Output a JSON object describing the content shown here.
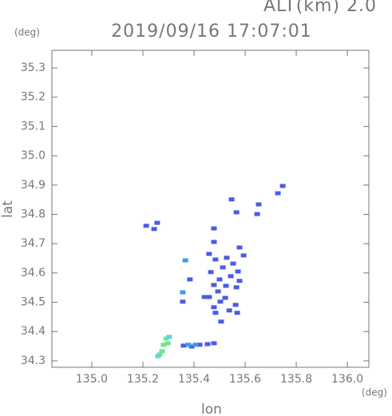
{
  "chart_data": {
    "type": "scatter",
    "title": "2019/09/16 17:07:01",
    "subtitle": "ALT(km) 2.0",
    "xlabel": "lon",
    "ylabel": "lat",
    "xunit": "(deg)",
    "yunit": "(deg)",
    "xlim": [
      134.844,
      136.084
    ],
    "ylim": [
      34.278,
      35.36
    ],
    "xticks": [
      {
        "value": 135.0,
        "label": "135.0"
      },
      135.2,
      135.4,
      135.6,
      135.8,
      {
        "value": 136.0,
        "label": "136.0"
      }
    ],
    "yticks": [
      34.3,
      34.4,
      34.5,
      34.6,
      34.7,
      34.8,
      34.9,
      {
        "value": 35.0,
        "label": "35.0"
      },
      35.1,
      35.2,
      35.3
    ],
    "series": [
      {
        "color": "#4a5ce6",
        "x": [
          135.213,
          135.256,
          135.244,
          135.547,
          135.566,
          135.653,
          135.647,
          135.728,
          135.747,
          135.478,
          135.478,
          135.578,
          135.594,
          135.459,
          135.484,
          135.528,
          135.553,
          135.513,
          135.572,
          135.466,
          135.544,
          135.5,
          135.578,
          135.384,
          135.478,
          135.525,
          135.566,
          135.494,
          135.459,
          135.503,
          135.478,
          135.522,
          135.563,
          135.538,
          135.569,
          135.484,
          135.506,
          135.356,
          135.441,
          135.359,
          135.391,
          135.422,
          135.453,
          135.478
        ],
        "values": [
          34.761,
          34.771,
          34.75,
          34.851,
          34.807,
          34.834,
          34.801,
          34.872,
          34.897,
          34.752,
          34.706,
          34.687,
          34.66,
          34.665,
          34.646,
          34.652,
          34.632,
          34.619,
          34.605,
          34.603,
          34.589,
          34.578,
          34.573,
          34.578,
          34.559,
          34.556,
          34.551,
          34.537,
          34.518,
          34.502,
          34.483,
          34.515,
          34.491,
          34.472,
          34.464,
          34.464,
          34.434,
          34.502,
          34.518,
          34.352,
          34.349,
          34.355,
          34.357,
          34.36
        ]
      },
      {
        "color": "#3d9be9",
        "x": [
          135.366,
          135.356,
          135.378,
          135.406
        ],
        "values": [
          34.643,
          34.534,
          34.355,
          34.355
        ]
      },
      {
        "color": "#6ee68c",
        "x": [
          135.281,
          135.291,
          135.275,
          135.266,
          135.297
        ],
        "values": [
          34.355,
          34.376,
          34.333,
          34.322,
          34.36
        ]
      },
      {
        "color": "#5ed6e0",
        "x": [
          135.303,
          135.259
        ],
        "values": [
          34.382,
          34.316
        ]
      }
    ]
  }
}
